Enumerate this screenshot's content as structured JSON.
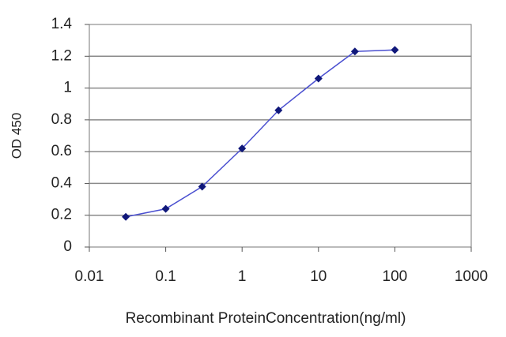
{
  "chart_data": {
    "type": "line",
    "x_label": "Recombinant ProteinConcentration(ng/ml)",
    "y_label": "OD 450",
    "x": [
      0.03,
      0.1,
      0.3,
      1,
      3,
      10,
      30,
      100
    ],
    "values": [
      0.19,
      0.24,
      0.38,
      0.62,
      0.86,
      1.06,
      1.23,
      1.24
    ],
    "color": "#4a4fd0",
    "marker_color": "#10187a",
    "x_scale": "log",
    "xlim": [
      0.01,
      1000
    ],
    "xticks": [
      0.01,
      0.1,
      1,
      10,
      100,
      1000
    ],
    "ylim": [
      0,
      1.4
    ],
    "yticks": [
      0,
      0.2,
      0.4,
      0.6,
      0.8,
      1,
      1.2,
      1.4
    ],
    "grid": true
  }
}
